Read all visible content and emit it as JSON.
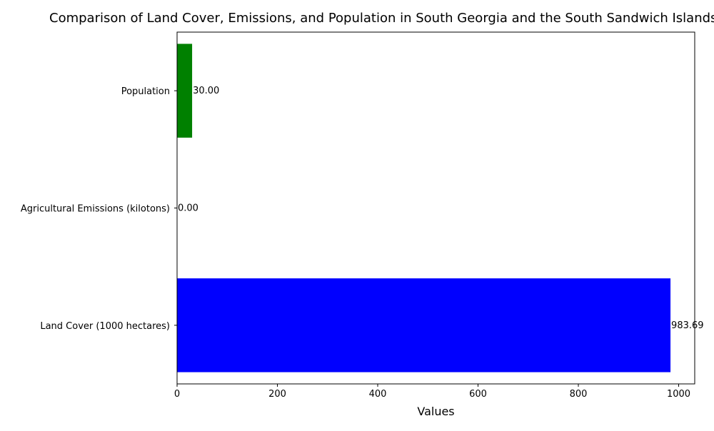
{
  "chart_data": {
    "type": "bar",
    "orientation": "horizontal",
    "title": "Comparison of Land Cover, Emissions, and Population in South Georgia and the South Sandwich Islands",
    "xlabel": "Values",
    "ylabel": "",
    "xlim": [
      0,
      1032
    ],
    "xticks": [
      0,
      200,
      400,
      600,
      800,
      1000
    ],
    "grid": false,
    "categories": [
      "Land Cover (1000 hectares)",
      "Agricultural Emissions (kilotons)",
      "Population"
    ],
    "values": [
      983.69,
      0.0,
      30.0
    ],
    "value_labels": [
      "983.69",
      "0.00",
      "30.00"
    ],
    "colors": [
      "#0000ff",
      "#ff0000",
      "#008000"
    ]
  }
}
